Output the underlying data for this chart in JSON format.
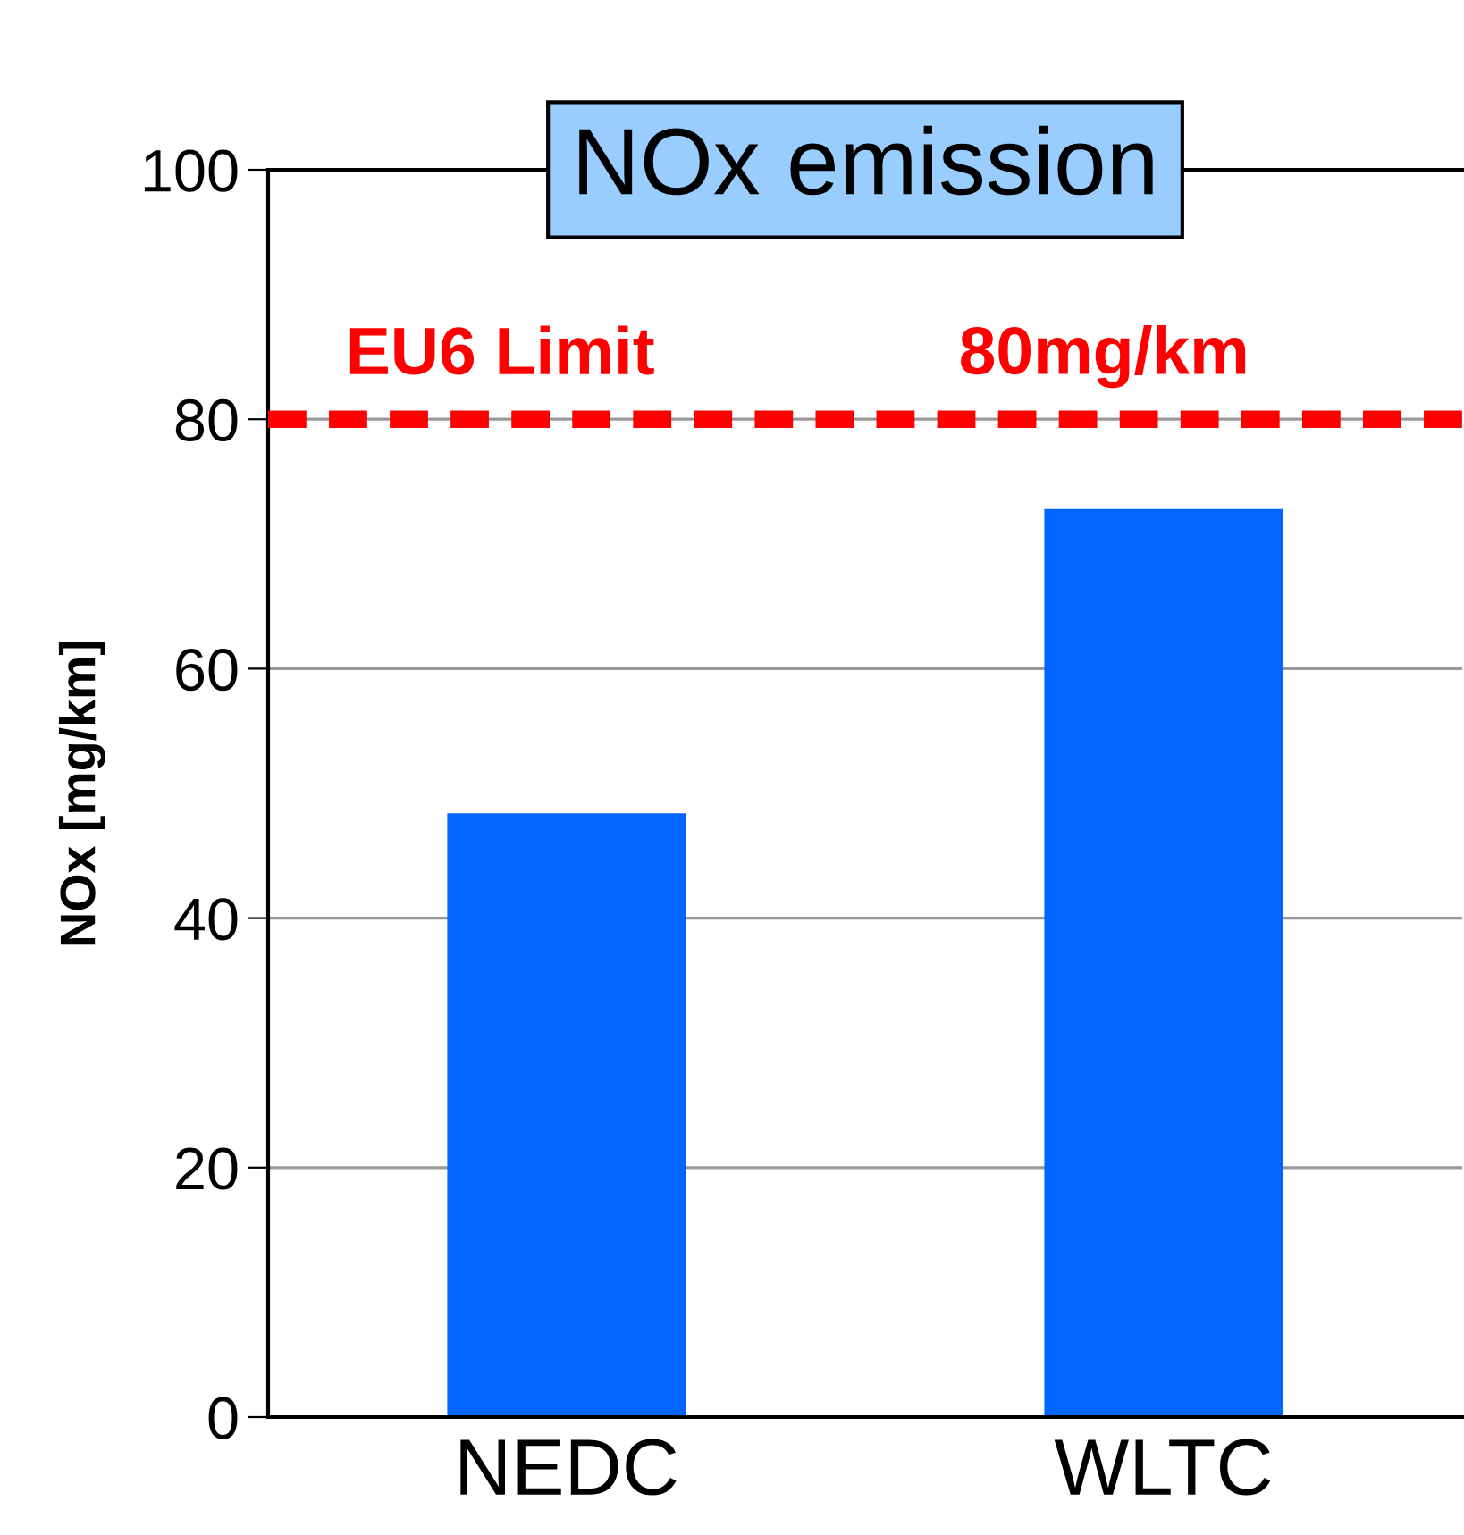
{
  "chart_data": {
    "type": "bar",
    "title": "NOx emission",
    "ylabel": "NOx [mg/km]",
    "categories": [
      "NEDC",
      "WLTC"
    ],
    "values": [
      48.4,
      72.8
    ],
    "color": "#0066ff",
    "ylim": [
      0,
      100
    ],
    "yticks": [
      0,
      20,
      40,
      60,
      80,
      100
    ],
    "grid": "y",
    "ref_lines": [
      {
        "axis": "y",
        "value": 80,
        "label": "EU6 Limit",
        "color": "#ff0000",
        "line_style": "dashed"
      }
    ],
    "annotations": [
      "80mg/km"
    ]
  }
}
